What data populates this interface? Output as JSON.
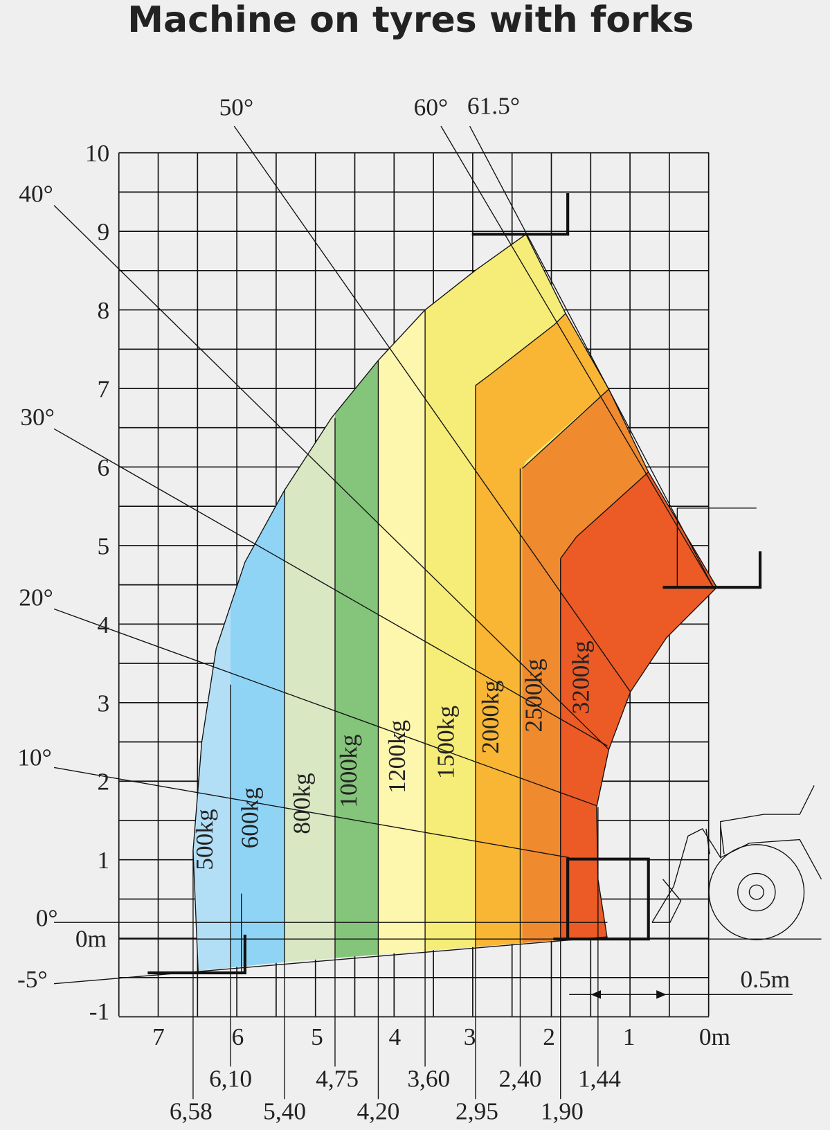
{
  "title": "Machine on tyres with forks",
  "height_labels": [
    "10",
    "9",
    "8",
    "7",
    "6",
    "5",
    "4",
    "3",
    "2",
    "1",
    "0m",
    "-1"
  ],
  "reach_labels": [
    "7",
    "6",
    "5",
    "4",
    "3",
    "2",
    "1",
    "0m"
  ],
  "distance_labels": [
    "6,58",
    "6,10",
    "5,40",
    "4,75",
    "4,20",
    "3,60",
    "2,95",
    "2,40",
    "1,90",
    "1,44"
  ],
  "angle_labels": [
    "50°",
    "60°",
    "61.5°",
    "40°",
    "30°",
    "20°",
    "10°",
    "0°",
    "-5°"
  ],
  "load_labels": [
    "500kg",
    "600kg",
    "800kg",
    "1000kg",
    "1200kg",
    "1500kg",
    "2000kg",
    "2500kg",
    "3200kg"
  ],
  "scale_label": "0.5m"
}
